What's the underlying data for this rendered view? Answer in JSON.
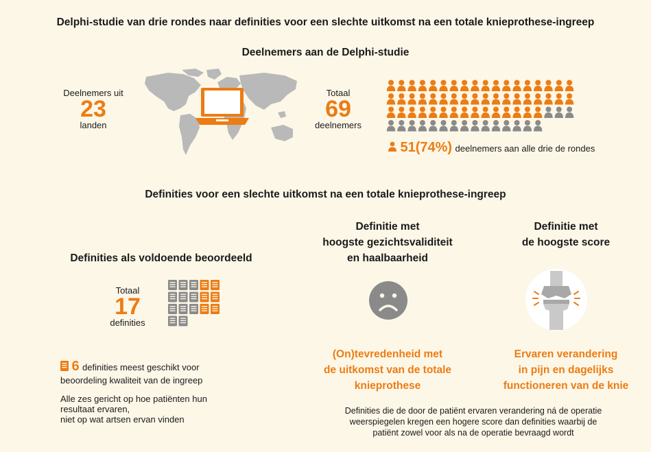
{
  "main_title": "Delphi-studie van drie rondes naar definities voor een slechte uitkomst na een totale knieprothese-ingreep",
  "participants": {
    "heading": "Deelnemers aan de Delphi-studie",
    "countries_prefix": "Deelnemers uit",
    "countries_value": "23",
    "countries_suffix": "landen",
    "total_prefix": "Totaal",
    "total_value": "69",
    "total_suffix": "deelnemers",
    "grid": {
      "total": 69,
      "highlighted": 51,
      "per_row": 18,
      "colors": {
        "highlighted": "#ec7c14",
        "other": "#8a8a8a"
      }
    },
    "all_rounds_value": "51(74%)",
    "all_rounds_text": "deelnemers aan alle drie de rondes"
  },
  "definitions": {
    "heading": "Definities voor een slechte uitkomst na een totale knieprothese-ingreep",
    "sufficient_heading": "Definities als voldoende beoordeeld",
    "total_prefix": "Totaal",
    "total_value": "17",
    "total_suffix": "definities",
    "grid": {
      "total": 17,
      "highlighted": 6,
      "colors": {
        "highlighted": "#ec7c14",
        "other": "#8a8a8a"
      }
    },
    "best_value": "6",
    "best_text_1": "definities meest geschikt voor",
    "best_text_2": "beoordeling kwaliteit van de ingreep",
    "note_1": "Alle zes gericht op hoe patiënten hun",
    "note_2": "resultaat ervaren,",
    "note_3": "niet op wat artsen ervan vinden",
    "face_validity": {
      "heading_lines": [
        "Definitie met",
        "hoogste gezichtsvaliditeit",
        "en haalbaarheid"
      ],
      "icon": "sad-face-icon",
      "result_lines": [
        "(On)tevredenheid met",
        "de uitkomst van de totale",
        "knieprothese"
      ]
    },
    "highest_score": {
      "heading_lines": [
        "Definitie met",
        "de hoogste score"
      ],
      "icon": "knee-joint-icon",
      "result_lines": [
        "Ervaren verandering",
        "in pijn en dagelijks",
        "functioneren van de knie"
      ]
    },
    "footnote_lines": [
      "Definities die de door de patiënt ervaren verandering ná de operatie",
      "weerspiegelen kregen een hogere score dan definities waarbij de",
      "patiënt zowel voor als na de operatie bevraagd wordt"
    ]
  },
  "colors": {
    "accent": "#ec7c14",
    "grey": "#8a8a8a",
    "background": "#fdf7e8"
  }
}
